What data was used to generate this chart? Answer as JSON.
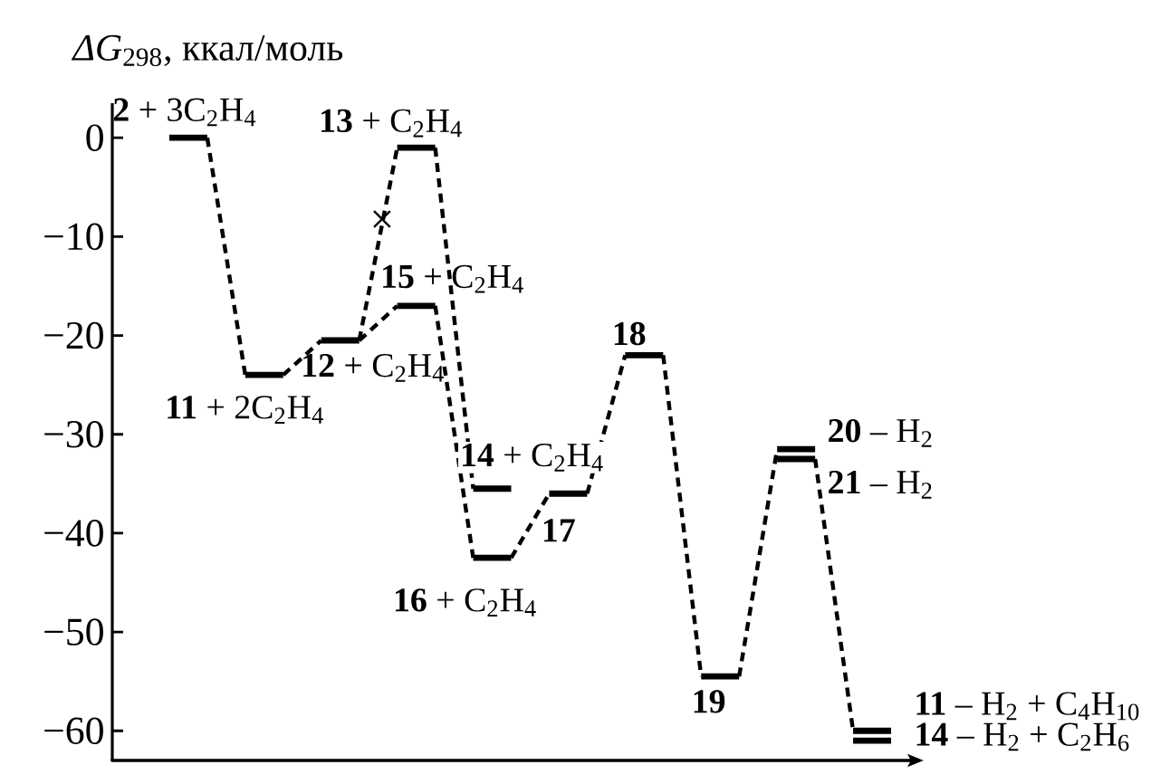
{
  "chart_data": {
    "type": "line",
    "ylabel": "*ΔG*$_{298}$, ккал/моль",
    "categories": [
      null,
      null,
      null,
      null,
      null,
      null,
      null,
      null,
      null,
      null,
      null,
      null,
      null,
      null,
      null,
      null,
      null,
      null,
      null,
      null,
      null
    ],
    "ylim": [
      -63,
      3.5
    ],
    "yticks": [
      0,
      {
        "value": -10,
        "label": "−10"
      },
      {
        "value": -20,
        "label": "−20"
      },
      {
        "value": -30,
        "label": "−30"
      },
      {
        "value": -40,
        "label": "−40"
      },
      {
        "value": -50,
        "label": "−50"
      },
      {
        "value": -60,
        "label": "−60"
      }
    ],
    "annotations": [
      {
        "text": "×",
        "y": -8.5
      }
    ],
    "series": [
      {
        "name": "**2** + 3C$_{2}$H$_{4}$",
        "color": "#000000",
        "line_style": "solid",
        "values": [
          null,
          0,
          0,
          null,
          null,
          null,
          null,
          null,
          null,
          null,
          null,
          null,
          null,
          null,
          null,
          null,
          null,
          null,
          null,
          null,
          null
        ]
      },
      {
        "name": "**11** + 2C$_{2}$H$_{4}$",
        "color": "#000000",
        "line_style": "solid",
        "values": [
          null,
          null,
          null,
          -24,
          -24,
          null,
          null,
          null,
          null,
          null,
          null,
          null,
          null,
          null,
          null,
          null,
          null,
          null,
          null,
          null,
          null
        ]
      },
      {
        "name": "**12** + C$_{2}$H$_{4}$",
        "color": "#000000",
        "line_style": "solid",
        "values": [
          null,
          null,
          null,
          null,
          null,
          -20.5,
          -20.5,
          null,
          null,
          null,
          null,
          null,
          null,
          null,
          null,
          null,
          null,
          null,
          null,
          null,
          null
        ]
      },
      {
        "name": "**13** + C$_{2}$H$_{4}$",
        "color": "#000000",
        "line_style": "solid",
        "values": [
          null,
          null,
          null,
          null,
          null,
          null,
          null,
          -1,
          -1,
          null,
          null,
          null,
          null,
          null,
          null,
          null,
          null,
          null,
          null,
          null,
          null
        ]
      },
      {
        "name": "**15** + C$_{2}$H$_{4}$",
        "color": "#000000",
        "line_style": "solid",
        "values": [
          null,
          null,
          null,
          null,
          null,
          null,
          null,
          -17,
          -17,
          null,
          null,
          null,
          null,
          null,
          null,
          null,
          null,
          null,
          null,
          null,
          null
        ]
      },
      {
        "name": "**14** + C$_{2}$H$_{4}$",
        "color": "#000000",
        "line_style": "solid",
        "values": [
          null,
          null,
          null,
          null,
          null,
          null,
          null,
          null,
          null,
          -35.5,
          -35.5,
          null,
          null,
          null,
          null,
          null,
          null,
          null,
          null,
          null,
          null
        ]
      },
      {
        "name": "**16** + C$_{2}$H$_{4}$",
        "color": "#000000",
        "line_style": "solid",
        "values": [
          null,
          null,
          null,
          null,
          null,
          null,
          null,
          null,
          null,
          -42.5,
          -42.5,
          null,
          null,
          null,
          null,
          null,
          null,
          null,
          null,
          null,
          null
        ]
      },
      {
        "name": "17",
        "color": "#000000",
        "line_style": "solid",
        "values": [
          null,
          null,
          null,
          null,
          null,
          null,
          null,
          null,
          null,
          null,
          null,
          -36,
          -36,
          null,
          null,
          null,
          null,
          null,
          null,
          null,
          null
        ]
      },
      {
        "name": "18",
        "color": "#000000",
        "line_style": "solid",
        "values": [
          null,
          null,
          null,
          null,
          null,
          null,
          null,
          null,
          null,
          null,
          null,
          null,
          null,
          -22,
          -22,
          null,
          null,
          null,
          null,
          null,
          null
        ]
      },
      {
        "name": "19",
        "color": "#000000",
        "line_style": "solid",
        "values": [
          null,
          null,
          null,
          null,
          null,
          null,
          null,
          null,
          null,
          null,
          null,
          null,
          null,
          null,
          null,
          -54.5,
          -54.5,
          null,
          null,
          null,
          null
        ]
      },
      {
        "name": "**20** – H$_{2}$",
        "color": "#000000",
        "line_style": "solid",
        "values": [
          null,
          null,
          null,
          null,
          null,
          null,
          null,
          null,
          null,
          null,
          null,
          null,
          null,
          null,
          null,
          null,
          null,
          -31.5,
          -31.5,
          null,
          null
        ]
      },
      {
        "name": "**21** – H$_{2}$",
        "color": "#000000",
        "line_style": "solid",
        "values": [
          null,
          null,
          null,
          null,
          null,
          null,
          null,
          null,
          null,
          null,
          null,
          null,
          null,
          null,
          null,
          null,
          null,
          -32.5,
          -32.5,
          null,
          null
        ]
      },
      {
        "name": "**11** – H$_{2}$ + C$_{4}$H$_{10}$",
        "color": "#000000",
        "line_style": "solid",
        "values": [
          null,
          null,
          null,
          null,
          null,
          null,
          null,
          null,
          null,
          null,
          null,
          null,
          null,
          null,
          null,
          null,
          null,
          null,
          null,
          -60,
          -60
        ]
      },
      {
        "name": "**14** – H$_{2}$ + C$_{2}$H$_{6}$",
        "color": "#000000",
        "line_style": "solid",
        "values": [
          null,
          null,
          null,
          null,
          null,
          null,
          null,
          null,
          null,
          null,
          null,
          null,
          null,
          null,
          null,
          null,
          null,
          null,
          null,
          -61,
          -61
        ]
      },
      {
        "color": "#000000",
        "line_style": "dashed",
        "values": [
          null,
          null,
          0,
          -24,
          null,
          null,
          null,
          null,
          null,
          null,
          null,
          null,
          null,
          null,
          null,
          null,
          null,
          null,
          null,
          null,
          null
        ]
      },
      {
        "color": "#000000",
        "line_style": "dashed",
        "values": [
          null,
          null,
          null,
          null,
          -24,
          -20.5,
          null,
          null,
          null,
          null,
          null,
          null,
          null,
          null,
          null,
          null,
          null,
          null,
          null,
          null,
          null
        ]
      },
      {
        "color": "#000000",
        "line_style": "dashed",
        "values": [
          null,
          null,
          null,
          null,
          null,
          null,
          -20.5,
          -17,
          null,
          null,
          null,
          null,
          null,
          null,
          null,
          null,
          null,
          null,
          null,
          null,
          null
        ]
      },
      {
        "color": "#000000",
        "line_style": "dashed",
        "values": [
          null,
          null,
          null,
          null,
          null,
          null,
          -20.5,
          -1,
          null,
          null,
          null,
          null,
          null,
          null,
          null,
          null,
          null,
          null,
          null,
          null,
          null
        ]
      },
      {
        "color": "#000000",
        "line_style": "dashed",
        "values": [
          null,
          null,
          null,
          null,
          null,
          null,
          null,
          null,
          -1,
          -35.5,
          null,
          null,
          null,
          null,
          null,
          null,
          null,
          null,
          null,
          null,
          null
        ]
      },
      {
        "color": "#000000",
        "line_style": "dashed",
        "values": [
          null,
          null,
          null,
          null,
          null,
          null,
          null,
          null,
          -17,
          -42.5,
          null,
          null,
          null,
          null,
          null,
          null,
          null,
          null,
          null,
          null,
          null
        ]
      },
      {
        "color": "#000000",
        "line_style": "dashed",
        "values": [
          null,
          null,
          null,
          null,
          null,
          null,
          null,
          null,
          null,
          null,
          -42.5,
          -36,
          null,
          null,
          null,
          null,
          null,
          null,
          null,
          null,
          null
        ]
      },
      {
        "color": "#000000",
        "line_style": "dashed",
        "values": [
          null,
          null,
          null,
          null,
          null,
          null,
          null,
          null,
          null,
          null,
          null,
          null,
          -36,
          -22,
          null,
          null,
          null,
          null,
          null,
          null,
          null
        ]
      },
      {
        "color": "#000000",
        "line_style": "dashed",
        "values": [
          null,
          null,
          null,
          null,
          null,
          null,
          null,
          null,
          null,
          null,
          null,
          null,
          null,
          null,
          -22,
          -54.5,
          null,
          null,
          null,
          null,
          null
        ]
      },
      {
        "color": "#000000",
        "line_style": "dashed",
        "values": [
          null,
          null,
          null,
          null,
          null,
          null,
          null,
          null,
          null,
          null,
          null,
          null,
          null,
          null,
          null,
          null,
          -54.5,
          -31.5,
          null,
          null,
          null
        ]
      },
      {
        "color": "#000000",
        "line_style": "dashed",
        "values": [
          null,
          null,
          null,
          null,
          null,
          null,
          null,
          null,
          null,
          null,
          null,
          null,
          null,
          null,
          null,
          null,
          null,
          null,
          -32.5,
          -60,
          null
        ]
      }
    ]
  }
}
